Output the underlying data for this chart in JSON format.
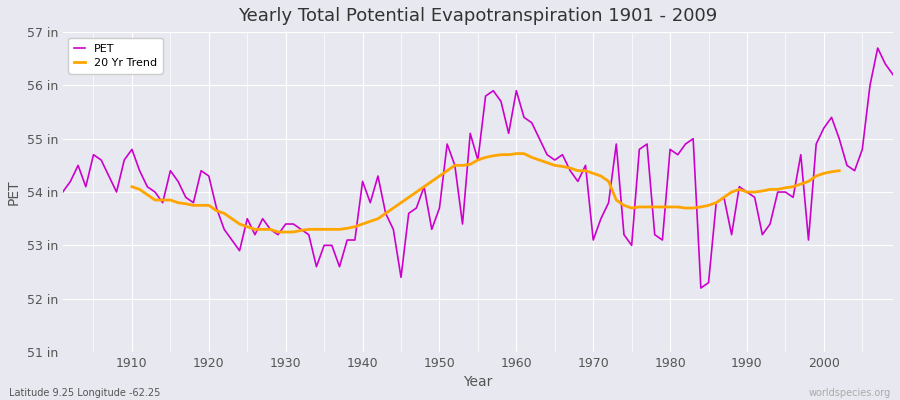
{
  "title": "Yearly Total Potential Evapotranspiration 1901 - 2009",
  "xlabel": "Year",
  "ylabel": "PET",
  "subtitle": "Latitude 9.25 Longitude -62.25",
  "watermark": "worldspecies.org",
  "pet_color": "#cc00cc",
  "trend_color": "#ffa500",
  "bg_color": "#e8e8f0",
  "ylim": [
    51,
    57
  ],
  "yticks": [
    51,
    52,
    53,
    54,
    55,
    56,
    57
  ],
  "ytick_labels": [
    "51 in",
    "52 in",
    "53 in",
    "54 in",
    "55 in",
    "56 in",
    "57 in"
  ],
  "years": [
    1901,
    1902,
    1903,
    1904,
    1905,
    1906,
    1907,
    1908,
    1909,
    1910,
    1911,
    1912,
    1913,
    1914,
    1915,
    1916,
    1917,
    1918,
    1919,
    1920,
    1921,
    1922,
    1923,
    1924,
    1925,
    1926,
    1927,
    1928,
    1929,
    1930,
    1931,
    1932,
    1933,
    1934,
    1935,
    1936,
    1937,
    1938,
    1939,
    1940,
    1941,
    1942,
    1943,
    1944,
    1945,
    1946,
    1947,
    1948,
    1949,
    1950,
    1951,
    1952,
    1953,
    1954,
    1955,
    1956,
    1957,
    1958,
    1959,
    1960,
    1961,
    1962,
    1963,
    1964,
    1965,
    1966,
    1967,
    1968,
    1969,
    1970,
    1971,
    1972,
    1973,
    1974,
    1975,
    1976,
    1977,
    1978,
    1979,
    1980,
    1981,
    1982,
    1983,
    1984,
    1985,
    1986,
    1987,
    1988,
    1989,
    1990,
    1991,
    1992,
    1993,
    1994,
    1995,
    1996,
    1997,
    1998,
    1999,
    2000,
    2001,
    2002,
    2003,
    2004,
    2005,
    2006,
    2007,
    2008,
    2009
  ],
  "pet": [
    54.0,
    54.2,
    54.5,
    54.1,
    54.7,
    54.6,
    54.3,
    54.0,
    54.6,
    54.8,
    54.4,
    54.1,
    54.0,
    53.8,
    54.4,
    54.2,
    53.9,
    53.8,
    54.4,
    54.3,
    53.7,
    53.3,
    53.1,
    52.9,
    53.5,
    53.2,
    53.5,
    53.3,
    53.2,
    53.4,
    53.4,
    53.3,
    53.2,
    52.6,
    53.0,
    53.0,
    52.6,
    53.1,
    53.1,
    54.2,
    53.8,
    54.3,
    53.6,
    53.3,
    52.4,
    53.6,
    53.7,
    54.1,
    53.3,
    53.7,
    54.9,
    54.5,
    53.4,
    55.1,
    54.6,
    55.8,
    55.9,
    55.7,
    55.1,
    55.9,
    55.4,
    55.3,
    55.0,
    54.7,
    54.6,
    54.7,
    54.4,
    54.2,
    54.5,
    53.1,
    53.5,
    53.8,
    54.9,
    53.2,
    53.0,
    54.8,
    54.9,
    53.2,
    53.1,
    54.8,
    54.7,
    54.9,
    55.0,
    52.2,
    52.3,
    53.8,
    53.9,
    53.2,
    54.1,
    54.0,
    53.9,
    53.2,
    53.4,
    54.0,
    54.0,
    53.9,
    54.7,
    53.1,
    54.9,
    55.2,
    55.4,
    55.0,
    54.5,
    54.4,
    54.8,
    56.0,
    56.7,
    56.4,
    56.2
  ],
  "trend": [
    null,
    null,
    null,
    null,
    null,
    null,
    null,
    null,
    null,
    54.1,
    54.05,
    53.95,
    53.85,
    53.85,
    53.85,
    53.8,
    53.78,
    53.75,
    53.75,
    53.75,
    53.65,
    53.6,
    53.5,
    53.4,
    53.35,
    53.3,
    53.3,
    53.3,
    53.25,
    53.25,
    53.25,
    53.28,
    53.3,
    53.3,
    53.3,
    53.3,
    53.3,
    53.32,
    53.35,
    53.4,
    53.45,
    53.5,
    53.6,
    53.7,
    53.8,
    53.9,
    54.0,
    54.1,
    54.2,
    54.3,
    54.4,
    54.5,
    54.5,
    54.52,
    54.6,
    54.65,
    54.68,
    54.7,
    54.7,
    54.72,
    54.72,
    54.65,
    54.6,
    54.55,
    54.5,
    54.48,
    54.45,
    54.4,
    54.4,
    54.35,
    54.3,
    54.2,
    53.85,
    53.75,
    53.7,
    53.72,
    53.72,
    53.72,
    53.72,
    53.72,
    53.72,
    53.7,
    53.7,
    53.72,
    53.75,
    53.8,
    53.9,
    54.0,
    54.05,
    54.0,
    54.0,
    54.02,
    54.05,
    54.05,
    54.08,
    54.1,
    54.15,
    54.2,
    54.3,
    54.35,
    54.38,
    54.4,
    null,
    null,
    null,
    null,
    null,
    null,
    null,
    null,
    null
  ]
}
